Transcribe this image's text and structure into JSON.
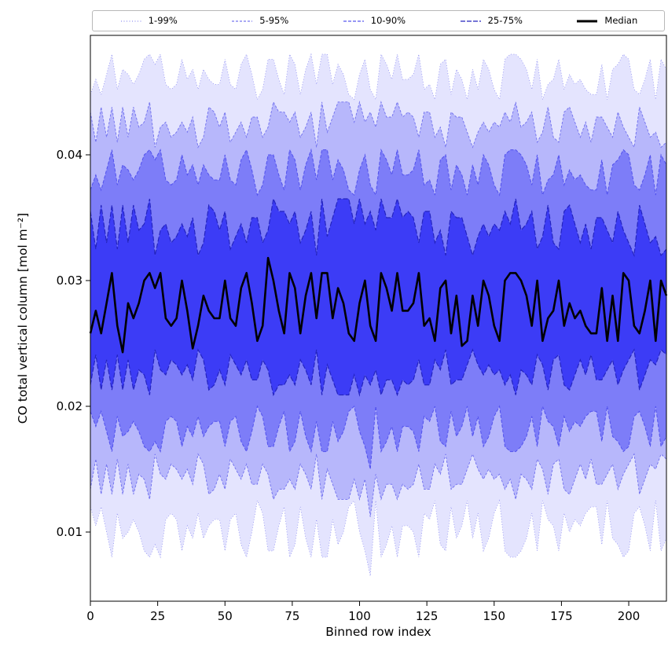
{
  "figure": {
    "background": "#ffffff"
  },
  "chart_data": {
    "type": "area",
    "title": "",
    "xlabel": "Binned row index",
    "ylabel": "CO total vertical column [mol m⁻²]",
    "legend_position": "top",
    "grid": false,
    "xlim": [
      0,
      214
    ],
    "ylim": [
      0.0045,
      0.0495
    ],
    "xticks": [
      0,
      25,
      50,
      75,
      100,
      125,
      150,
      175,
      200
    ],
    "yticks": [
      0.01,
      0.02,
      0.03,
      0.04
    ],
    "ytick_labels": [
      "0.01",
      "0.02",
      "0.03",
      "0.04"
    ],
    "x_start": 0,
    "x_step": 2,
    "scale": 0.0001,
    "median_style": {
      "label": "Median",
      "color": "#000000",
      "width": 2.6
    },
    "bands": [
      {
        "label": "1-99%",
        "lower": "p1",
        "upper": "p99",
        "fill": "rgba(75,75,245,0.15)",
        "edge": "rgba(110,110,235,0.75)",
        "edge_width": 0.8,
        "dash": "1,2.4",
        "legend_dash": "1,2.5"
      },
      {
        "label": "5-95%",
        "lower": "p5",
        "upper": "p95",
        "fill": "rgba(70,70,245,0.28)",
        "edge": "rgba(95,95,235,0.85)",
        "edge_width": 0.9,
        "dash": "3,2",
        "legend_dash": "3,2"
      },
      {
        "label": "10-90%",
        "lower": "p10",
        "upper": "p90",
        "fill": "rgba(55,55,245,0.45)",
        "edge": "rgba(75,75,235,0.92)",
        "edge_width": 1.0,
        "dash": "4,2.2",
        "legend_dash": "4,2"
      },
      {
        "label": "25-75%",
        "lower": "p25",
        "upper": "p75",
        "fill": "rgba(35,35,245,0.72)",
        "edge": "rgba(35,35,190,1)",
        "edge_width": 1.15,
        "dash": "6,2.5",
        "legend_dash": "6,2"
      }
    ],
    "series": {
      "median": [
        258,
        276,
        258,
        282,
        306,
        264,
        243,
        282,
        270,
        282,
        300,
        306,
        294,
        306,
        270,
        264,
        270,
        300,
        276,
        246,
        264,
        288,
        276,
        270,
        270,
        300,
        270,
        264,
        294,
        306,
        282,
        252,
        264,
        318,
        300,
        276,
        258,
        306,
        294,
        258,
        288,
        306,
        270,
        306,
        306,
        270,
        294,
        282,
        258,
        252,
        282,
        300,
        264,
        252,
        306,
        294,
        276,
        306,
        276,
        276,
        282,
        306,
        264,
        270,
        252,
        294,
        300,
        258,
        288,
        248,
        252,
        288,
        264,
        300,
        288,
        264,
        252,
        300,
        306,
        306,
        300,
        288,
        264,
        300,
        252,
        270,
        276,
        300,
        264,
        282,
        270,
        276,
        264,
        258,
        258,
        294,
        252,
        288,
        252,
        306,
        300,
        264,
        258,
        276,
        300,
        252,
        300,
        288
      ],
      "p75": [
        355,
        325,
        360,
        330,
        360,
        325,
        360,
        330,
        360,
        340,
        345,
        365,
        320,
        340,
        345,
        330,
        335,
        345,
        335,
        350,
        320,
        330,
        360,
        355,
        340,
        355,
        325,
        335,
        345,
        330,
        350,
        350,
        330,
        340,
        365,
        355,
        355,
        345,
        355,
        330,
        340,
        355,
        320,
        365,
        335,
        350,
        365,
        365,
        365,
        345,
        365,
        345,
        355,
        340,
        365,
        350,
        350,
        365,
        350,
        355,
        350,
        330,
        355,
        355,
        330,
        340,
        320,
        355,
        350,
        350,
        335,
        320,
        335,
        345,
        335,
        345,
        340,
        355,
        345,
        365,
        340,
        345,
        355,
        325,
        335,
        360,
        330,
        325,
        355,
        360,
        345,
        330,
        345,
        325,
        350,
        350,
        340,
        330,
        355,
        340,
        330,
        320,
        360,
        345,
        330,
        335,
        320,
        325
      ],
      "p90": [
        372,
        384,
        372,
        388,
        404,
        376,
        392,
        388,
        380,
        388,
        400,
        404,
        396,
        404,
        380,
        376,
        380,
        400,
        384,
        392,
        376,
        392,
        384,
        380,
        380,
        400,
        380,
        376,
        396,
        404,
        388,
        368,
        376,
        400,
        400,
        384,
        372,
        404,
        396,
        372,
        392,
        404,
        380,
        404,
        404,
        380,
        396,
        388,
        372,
        368,
        388,
        400,
        376,
        368,
        404,
        396,
        384,
        404,
        384,
        384,
        388,
        404,
        376,
        380,
        368,
        396,
        400,
        372,
        392,
        384,
        368,
        392,
        376,
        400,
        392,
        376,
        368,
        400,
        404,
        404,
        400,
        392,
        376,
        400,
        368,
        380,
        384,
        400,
        376,
        388,
        380,
        384,
        376,
        372,
        372,
        396,
        368,
        392,
        396,
        404,
        400,
        376,
        372,
        384,
        400,
        368,
        400,
        392
      ],
      "p95": [
        434,
        410,
        438,
        414,
        438,
        410,
        438,
        414,
        438,
        422,
        426,
        442,
        406,
        422,
        426,
        414,
        418,
        426,
        418,
        430,
        406,
        414,
        438,
        434,
        422,
        434,
        410,
        418,
        426,
        414,
        430,
        430,
        414,
        422,
        442,
        434,
        434,
        426,
        434,
        414,
        422,
        434,
        406,
        442,
        418,
        430,
        442,
        442,
        442,
        426,
        442,
        426,
        434,
        422,
        442,
        430,
        430,
        442,
        430,
        434,
        430,
        414,
        434,
        434,
        414,
        422,
        406,
        434,
        430,
        430,
        418,
        406,
        418,
        426,
        418,
        426,
        422,
        434,
        426,
        442,
        422,
        426,
        434,
        410,
        418,
        438,
        414,
        410,
        434,
        438,
        426,
        414,
        426,
        410,
        430,
        430,
        422,
        414,
        434,
        422,
        414,
        406,
        438,
        426,
        414,
        418,
        406,
        410
      ],
      "p99": [
        448,
        460,
        448,
        464,
        480,
        452,
        468,
        464,
        456,
        464,
        476,
        480,
        472,
        480,
        456,
        452,
        456,
        476,
        460,
        468,
        452,
        468,
        460,
        456,
        456,
        476,
        456,
        452,
        472,
        480,
        464,
        444,
        452,
        476,
        476,
        460,
        448,
        480,
        472,
        448,
        468,
        480,
        456,
        480,
        480,
        456,
        472,
        464,
        448,
        444,
        464,
        476,
        452,
        444,
        480,
        472,
        460,
        480,
        460,
        460,
        464,
        480,
        452,
        456,
        444,
        472,
        476,
        448,
        468,
        460,
        444,
        468,
        452,
        476,
        468,
        452,
        444,
        476,
        480,
        480,
        476,
        468,
        452,
        476,
        444,
        456,
        460,
        476,
        452,
        464,
        456,
        460,
        452,
        448,
        448,
        472,
        444,
        468,
        472,
        480,
        476,
        452,
        448,
        460,
        476,
        444,
        476,
        468
      ],
      "p25": [
        217,
        241,
        213,
        237,
        213,
        241,
        213,
        237,
        213,
        229,
        225,
        209,
        245,
        229,
        225,
        237,
        233,
        225,
        233,
        221,
        245,
        237,
        213,
        217,
        229,
        217,
        241,
        233,
        225,
        237,
        221,
        221,
        237,
        229,
        209,
        217,
        217,
        225,
        217,
        237,
        229,
        217,
        245,
        209,
        233,
        221,
        209,
        209,
        209,
        225,
        209,
        225,
        217,
        229,
        209,
        221,
        221,
        209,
        221,
        217,
        221,
        237,
        217,
        217,
        237,
        229,
        245,
        217,
        221,
        221,
        233,
        245,
        233,
        225,
        233,
        225,
        229,
        217,
        225,
        209,
        229,
        225,
        217,
        241,
        233,
        213,
        237,
        241,
        217,
        213,
        225,
        237,
        225,
        241,
        221,
        221,
        229,
        237,
        217,
        229,
        237,
        245,
        213,
        225,
        237,
        233,
        245,
        241
      ],
      "p10": [
        196,
        184,
        196,
        180,
        164,
        192,
        176,
        180,
        188,
        180,
        168,
        164,
        172,
        164,
        188,
        192,
        188,
        168,
        184,
        176,
        192,
        176,
        184,
        188,
        188,
        168,
        188,
        192,
        172,
        164,
        180,
        200,
        192,
        168,
        168,
        184,
        196,
        164,
        172,
        196,
        176,
        164,
        188,
        164,
        164,
        188,
        172,
        180,
        196,
        200,
        180,
        168,
        150,
        200,
        164,
        172,
        184,
        164,
        184,
        184,
        180,
        164,
        192,
        188,
        200,
        172,
        168,
        196,
        176,
        184,
        200,
        176,
        192,
        168,
        176,
        192,
        200,
        168,
        164,
        164,
        168,
        176,
        192,
        168,
        200,
        188,
        184,
        168,
        192,
        180,
        188,
        184,
        192,
        196,
        196,
        172,
        200,
        176,
        172,
        164,
        168,
        192,
        196,
        184,
        168,
        200,
        168,
        176
      ],
      "p5": [
        134,
        158,
        130,
        154,
        130,
        158,
        130,
        154,
        130,
        146,
        142,
        126,
        162,
        146,
        142,
        154,
        150,
        142,
        150,
        138,
        162,
        154,
        130,
        134,
        146,
        134,
        158,
        150,
        142,
        154,
        138,
        138,
        154,
        146,
        126,
        134,
        134,
        142,
        134,
        154,
        146,
        134,
        162,
        126,
        150,
        138,
        126,
        126,
        126,
        142,
        126,
        142,
        112,
        146,
        126,
        138,
        138,
        126,
        138,
        134,
        138,
        154,
        134,
        134,
        154,
        146,
        162,
        134,
        138,
        138,
        150,
        162,
        150,
        142,
        150,
        142,
        146,
        134,
        142,
        126,
        146,
        142,
        134,
        158,
        150,
        130,
        154,
        158,
        134,
        130,
        142,
        154,
        142,
        158,
        138,
        138,
        146,
        154,
        134,
        146,
        154,
        162,
        130,
        142,
        154,
        150,
        162,
        158
      ],
      "p1": [
        120,
        105,
        120,
        100,
        80,
        115,
        95,
        100,
        110,
        100,
        85,
        80,
        90,
        80,
        110,
        115,
        110,
        85,
        105,
        95,
        115,
        95,
        105,
        110,
        110,
        85,
        110,
        115,
        90,
        80,
        100,
        125,
        115,
        85,
        85,
        105,
        120,
        80,
        90,
        120,
        95,
        80,
        110,
        80,
        80,
        110,
        90,
        100,
        120,
        125,
        100,
        85,
        65,
        125,
        80,
        90,
        105,
        80,
        105,
        105,
        100,
        80,
        115,
        110,
        125,
        90,
        85,
        120,
        95,
        105,
        125,
        95,
        115,
        85,
        95,
        115,
        125,
        85,
        80,
        80,
        85,
        95,
        115,
        85,
        125,
        110,
        105,
        85,
        115,
        100,
        110,
        105,
        115,
        120,
        120,
        90,
        125,
        95,
        90,
        80,
        85,
        115,
        120,
        105,
        85,
        125,
        85,
        95
      ]
    }
  }
}
